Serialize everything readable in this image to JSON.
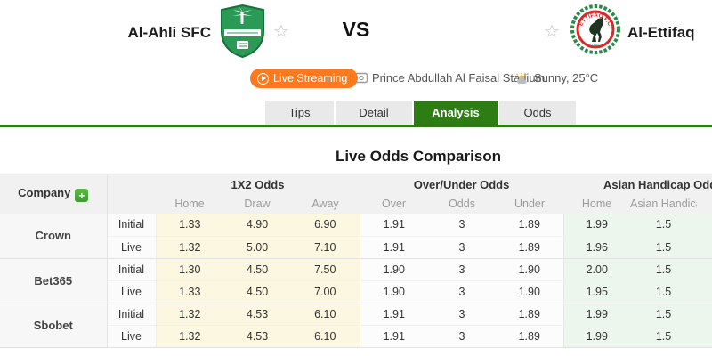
{
  "header": {
    "home_team": {
      "name": "Al-Ahli SFC"
    },
    "away_team": {
      "name": "Al-Ettifaq"
    },
    "vs_label": "VS",
    "live_streaming_label": "Live Streaming",
    "stadium": "Prince Abdullah Al Faisal Stadium",
    "weather": "Sunny, 25°C"
  },
  "tabs": [
    {
      "label": "Tips",
      "active": false
    },
    {
      "label": "Detail",
      "active": false
    },
    {
      "label": "Analysis",
      "active": true
    },
    {
      "label": "Odds",
      "active": false
    }
  ],
  "section": {
    "title": "Live Odds Comparison"
  },
  "odds_table": {
    "company_header": "Company",
    "add_company_label": "+",
    "groups": [
      {
        "label": "1X2 Odds",
        "columns": [
          "Home",
          "Draw",
          "Away"
        ]
      },
      {
        "label": "Over/Under Odds",
        "columns": [
          "Over",
          "Odds",
          "Under"
        ]
      },
      {
        "label": "Asian Handicap Odds",
        "columns": [
          "Home",
          "Asian Handicap"
        ]
      }
    ],
    "companies": [
      {
        "name": "Crown",
        "rows": [
          {
            "type": "Initial",
            "x12": [
              "1.33",
              "4.90",
              "6.90"
            ],
            "ou": [
              "1.91",
              "3",
              "1.89"
            ],
            "ah": [
              "1.99",
              "1.5"
            ]
          },
          {
            "type": "Live",
            "x12": [
              "1.32",
              "5.00",
              "7.10"
            ],
            "ou": [
              "1.91",
              "3",
              "1.89"
            ],
            "ah": [
              "1.96",
              "1.5"
            ]
          }
        ]
      },
      {
        "name": "Bet365",
        "rows": [
          {
            "type": "Initial",
            "x12": [
              "1.30",
              "4.50",
              "7.50"
            ],
            "ou": [
              "1.90",
              "3",
              "1.90"
            ],
            "ah": [
              "2.00",
              "1.5"
            ]
          },
          {
            "type": "Live",
            "x12": [
              "1.33",
              "4.50",
              "7.00"
            ],
            "ou": [
              "1.90",
              "3",
              "1.90"
            ],
            "ah": [
              "1.95",
              "1.5"
            ]
          }
        ]
      },
      {
        "name": "Sbobet",
        "rows": [
          {
            "type": "Initial",
            "x12": [
              "1.32",
              "4.53",
              "6.10"
            ],
            "ou": [
              "1.91",
              "3",
              "1.89"
            ],
            "ah": [
              "1.99",
              "1.5"
            ]
          },
          {
            "type": "Live",
            "x12": [
              "1.32",
              "4.53",
              "6.10"
            ],
            "ou": [
              "1.91",
              "3",
              "1.89"
            ],
            "ah": [
              "1.99",
              "1.5"
            ]
          }
        ]
      }
    ]
  },
  "colors": {
    "accent_green": "#2e7d14",
    "accent_orange": "#fb7a1e",
    "cell_yellow": "#fcf7e1",
    "cell_green": "#ecf6ec",
    "header_gray": "#f1f1f1"
  }
}
